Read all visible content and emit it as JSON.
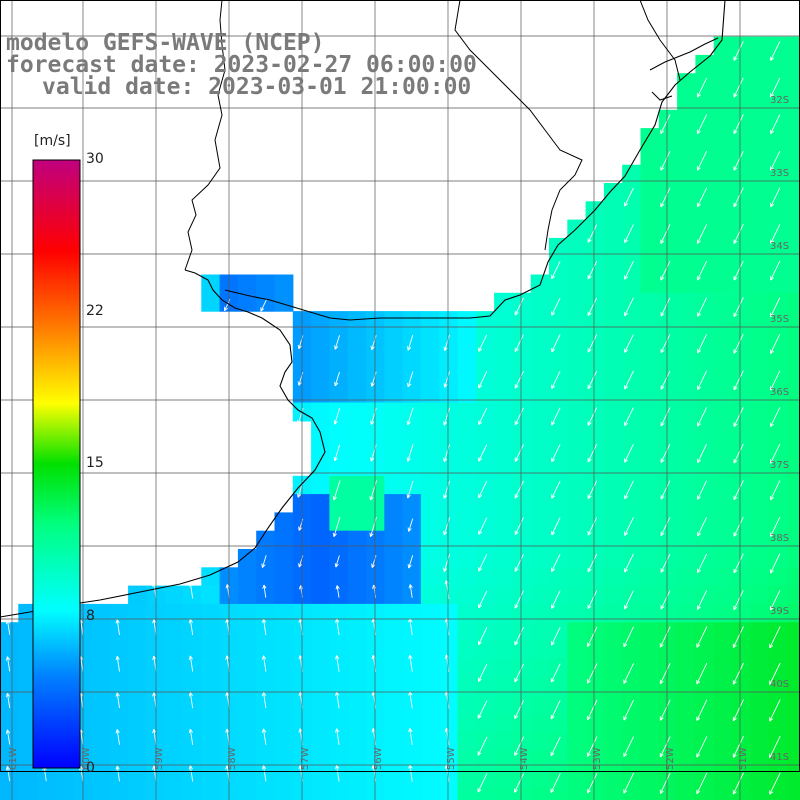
{
  "title": {
    "line1": "modelo GEFS-WAVE (NCEP)",
    "line2": "forecast date: 2023-02-27 06:00:00",
    "line3": "valid date: 2023-03-01 21:00:00"
  },
  "colorbar": {
    "units": "[m/s]",
    "ticks": [
      {
        "label": "30",
        "value": 30
      },
      {
        "label": "22",
        "value": 22
      },
      {
        "label": "15",
        "value": 15
      },
      {
        "label": "8",
        "value": 8
      },
      {
        "label": "0",
        "value": 0
      }
    ],
    "range": [
      0,
      30
    ],
    "colors": [
      "#0000ff",
      "#0080ff",
      "#00ffff",
      "#00ff00",
      "#ffff00",
      "#ff8000",
      "#ff0000",
      "#c0007f"
    ]
  },
  "grid": {
    "lat_labels": [
      "32S",
      "33S",
      "34S",
      "35S",
      "36S",
      "37S",
      "38S",
      "39S",
      "40S",
      "41S"
    ],
    "lon_labels": [
      "61W",
      "60W",
      "59W",
      "58W",
      "57W",
      "56W",
      "55W",
      "54W",
      "53W",
      "52W",
      "51W"
    ]
  },
  "map": {
    "field": "wind speed",
    "land_color": "#ffffff",
    "arrow_color": "#ffffff",
    "coast_color": "#000000"
  }
}
